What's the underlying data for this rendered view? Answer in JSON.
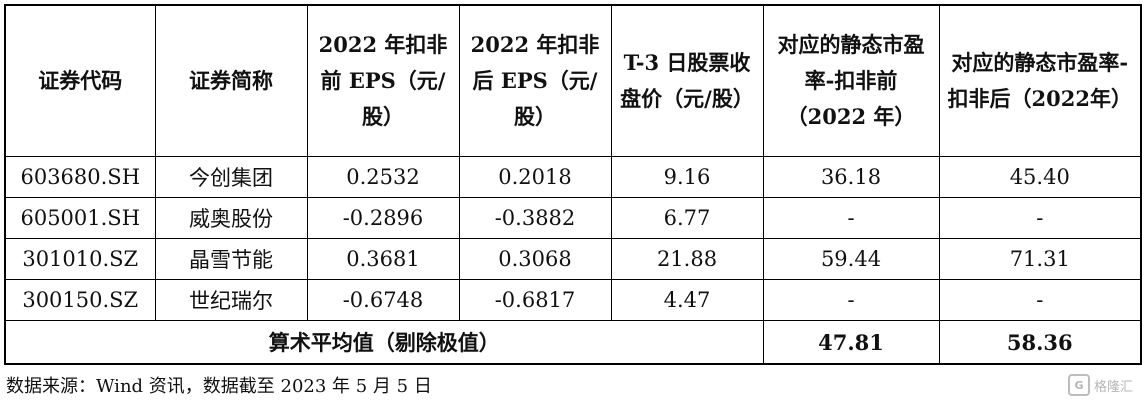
{
  "table": {
    "headers": [
      "证券代码",
      "证券简称",
      "2022 年扣非前 EPS（元/股）",
      "2022 年扣非后 EPS（元/股）",
      "T-3 日股票收盘价（元/股）",
      "对应的静态市盈率-扣非前（2022 年）",
      "对应的静态市盈率-扣非后（2022年）"
    ],
    "rows": [
      [
        "603680.SH",
        "今创集团",
        "0.2532",
        "0.2018",
        "9.16",
        "36.18",
        "45.40"
      ],
      [
        "605001.SH",
        "威奥股份",
        "-0.2896",
        "-0.3882",
        "6.77",
        "-",
        "-"
      ],
      [
        "301010.SZ",
        "晶雪节能",
        "0.3681",
        "0.3068",
        "21.88",
        "59.44",
        "71.31"
      ],
      [
        "300150.SZ",
        "世纪瑞尔",
        "-0.6748",
        "-0.6817",
        "4.47",
        "-",
        "-"
      ]
    ],
    "average": {
      "label": "算术平均值（剔除极值）",
      "pe_before": "47.81",
      "pe_after": "58.36"
    }
  },
  "source": "数据来源：Wind 资讯，数据截至 2023 年 5 月 5 日",
  "watermark": {
    "badge": "G",
    "text": "格隆汇"
  }
}
